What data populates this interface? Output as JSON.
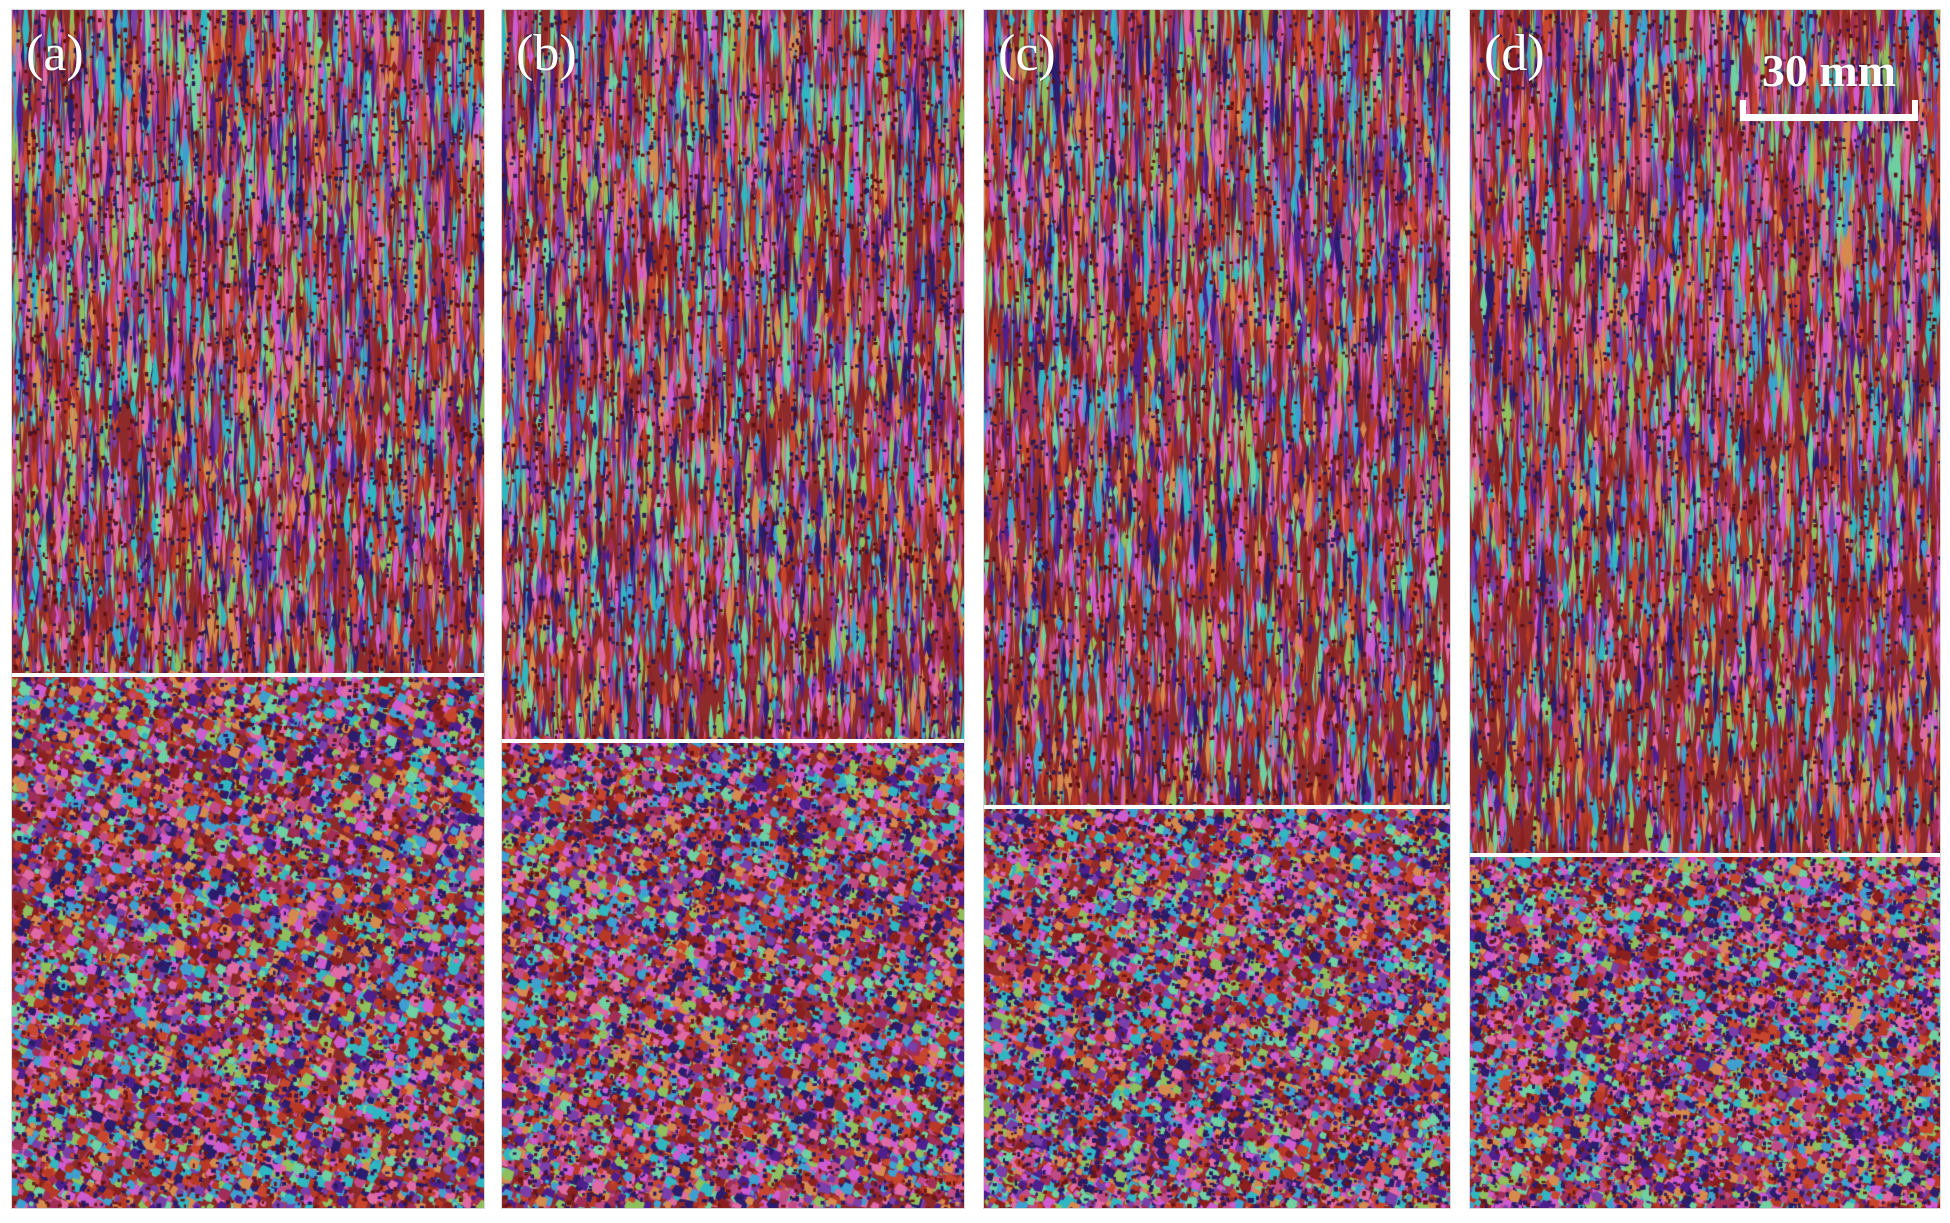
{
  "panels": [
    {
      "label": "(a)",
      "columnar_fraction": 0.555
    },
    {
      "label": "(b)",
      "columnar_fraction": 0.61
    },
    {
      "label": "(c)",
      "columnar_fraction": 0.665
    },
    {
      "label": "(d)",
      "columnar_fraction": 0.705
    }
  ],
  "scale_bar": {
    "label": "30 mm"
  },
  "colors": {
    "grain_palette": [
      "#b83a26",
      "#8b1f1f",
      "#c14b86",
      "#cf5bd0",
      "#4f1f8f",
      "#2c1d6e",
      "#2fb7c2",
      "#6fd0a2",
      "#8fc05d",
      "#d68a4e",
      "#a12d58",
      "#7a3fa8",
      "#e06aa4",
      "#c9462e",
      "#3f9fd0"
    ],
    "divider": "#ffffff",
    "label": "#ffffff"
  }
}
